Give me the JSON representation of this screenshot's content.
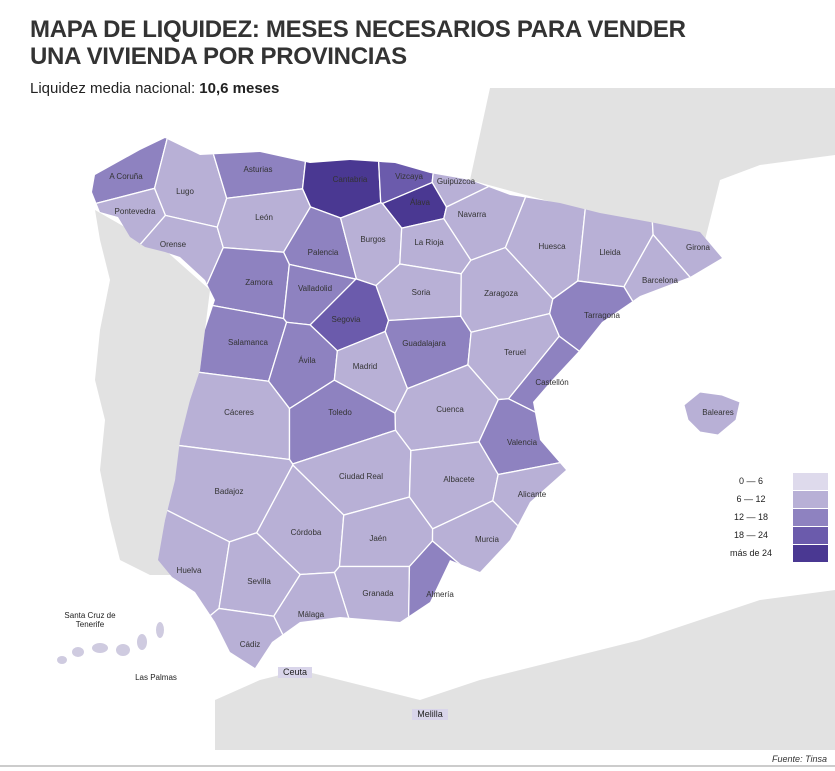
{
  "header": {
    "title": "MAPA DE LIQUIDEZ: MESES NECESARIOS PARA VENDER UNA VIVIENDA POR PROVINCIAS",
    "subtitle_label": "Liquidez media nacional:",
    "subtitle_value": "10,6  meses"
  },
  "legend": {
    "classes": [
      {
        "label": "0 — 6",
        "color": "#dedaec"
      },
      {
        "label": "6 — 12",
        "color": "#b8b0d6"
      },
      {
        "label": "12 — 18",
        "color": "#8e82c0"
      },
      {
        "label": "18 — 24",
        "color": "#6b5bac"
      },
      {
        "label": "más de 24",
        "color": "#4a3892"
      }
    ]
  },
  "provinces": [
    {
      "name": "A Coruña",
      "class": 2
    },
    {
      "name": "Lugo",
      "class": 1
    },
    {
      "name": "Pontevedra",
      "class": 1
    },
    {
      "name": "Orense",
      "class": 1
    },
    {
      "name": "Asturias",
      "class": 2
    },
    {
      "name": "Cantabria",
      "class": 4
    },
    {
      "name": "Vizcaya",
      "class": 3
    },
    {
      "name": "Guipúzcoa",
      "class": 1
    },
    {
      "name": "Álava",
      "class": 4
    },
    {
      "name": "Navarra",
      "class": 1
    },
    {
      "name": "León",
      "class": 1
    },
    {
      "name": "Palencia",
      "class": 2
    },
    {
      "name": "Burgos",
      "class": 1
    },
    {
      "name": "La Rioja",
      "class": 1
    },
    {
      "name": "Huesca",
      "class": 1
    },
    {
      "name": "Lleida",
      "class": 1
    },
    {
      "name": "Girona",
      "class": 1
    },
    {
      "name": "Barcelona",
      "class": 1
    },
    {
      "name": "Zamora",
      "class": 2
    },
    {
      "name": "Valladolid",
      "class": 2
    },
    {
      "name": "Soria",
      "class": 1
    },
    {
      "name": "Zaragoza",
      "class": 1
    },
    {
      "name": "Tarragona",
      "class": 2
    },
    {
      "name": "Salamanca",
      "class": 2
    },
    {
      "name": "Segovia",
      "class": 3
    },
    {
      "name": "Ávila",
      "class": 2
    },
    {
      "name": "Guadalajara",
      "class": 2
    },
    {
      "name": "Teruel",
      "class": 1
    },
    {
      "name": "Castellón",
      "class": 2
    },
    {
      "name": "Madrid",
      "class": 1
    },
    {
      "name": "Cáceres",
      "class": 1
    },
    {
      "name": "Toledo",
      "class": 2
    },
    {
      "name": "Cuenca",
      "class": 1
    },
    {
      "name": "Valencia",
      "class": 2
    },
    {
      "name": "Baleares",
      "class": 1
    },
    {
      "name": "Badajoz",
      "class": 1
    },
    {
      "name": "Ciudad Real",
      "class": 1
    },
    {
      "name": "Albacete",
      "class": 1
    },
    {
      "name": "Alicante",
      "class": 1
    },
    {
      "name": "Huelva",
      "class": 1
    },
    {
      "name": "Sevilla",
      "class": 1
    },
    {
      "name": "Córdoba",
      "class": 1
    },
    {
      "name": "Jaén",
      "class": 1
    },
    {
      "name": "Murcia",
      "class": 1
    },
    {
      "name": "Granada",
      "class": 1
    },
    {
      "name": "Almería",
      "class": 2
    },
    {
      "name": "Málaga",
      "class": 1
    },
    {
      "name": "Cádiz",
      "class": 1
    }
  ],
  "islands": [
    "Santa Cruz de Tenerife",
    "Las Palmas"
  ],
  "cities": [
    "Ceuta",
    "Melilla"
  ],
  "source": "Fuente: Tinsa"
}
